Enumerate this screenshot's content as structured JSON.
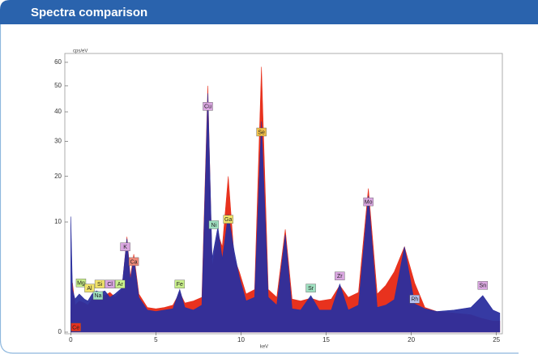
{
  "chart_data": {
    "type": "area",
    "title": "Spectra comparison",
    "xlabel": "keV",
    "ylabel": "cps/eV",
    "yscale": "sqrt",
    "xlim": [
      -0.35,
      25.35
    ],
    "ylim": [
      0,
      64
    ],
    "xticks": [
      0,
      5,
      10,
      15,
      20,
      25
    ],
    "yticks": [
      0,
      10,
      20,
      30,
      40,
      50,
      60
    ],
    "x": [
      0,
      0.1,
      0.25,
      0.5,
      0.8,
      1.0,
      1.25,
      1.5,
      1.75,
      2.0,
      2.3,
      2.6,
      3.0,
      3.3,
      3.5,
      3.7,
      4.0,
      4.5,
      5.0,
      5.5,
      6.0,
      6.4,
      6.7,
      7.2,
      7.7,
      8.05,
      8.3,
      8.64,
      8.9,
      9.25,
      9.6,
      9.9,
      10.3,
      10.8,
      11.2,
      11.6,
      12.1,
      12.6,
      13.0,
      13.5,
      14.1,
      14.6,
      15.3,
      15.8,
      16.3,
      16.9,
      17.48,
      18.0,
      18.5,
      19.0,
      19.6,
      20.2,
      20.8,
      21.5,
      22.5,
      23.5,
      24.2,
      24.8,
      25.2
    ],
    "series": [
      {
        "color": "#e8321e",
        "values": [
          0.3,
          2.0,
          0.6,
          0.8,
          0.7,
          0.6,
          0.9,
          1.0,
          1.2,
          1.1,
          1.3,
          1.0,
          1.5,
          7.5,
          2.5,
          5.0,
          1.2,
          0.5,
          0.45,
          0.5,
          0.6,
          1.3,
          0.7,
          0.8,
          1.0,
          50,
          3.5,
          8.0,
          6.0,
          20,
          4.5,
          3.0,
          1.2,
          1.5,
          58,
          1.5,
          1.0,
          8.7,
          0.9,
          0.8,
          0.95,
          0.8,
          0.9,
          1.8,
          1.0,
          1.3,
          17,
          1.2,
          1.8,
          3.0,
          6.0,
          2.0,
          0.5,
          0.35,
          0.3,
          0.25,
          0.15,
          0.1,
          0.1
        ]
      },
      {
        "color": "#2b2f9e",
        "values": [
          11,
          1.5,
          0.9,
          1.2,
          0.9,
          0.8,
          1.2,
          1.4,
          1.3,
          1.4,
          1.0,
          1.2,
          1.6,
          7.2,
          2.2,
          4.6,
          1.0,
          0.4,
          0.35,
          0.4,
          0.45,
          1.5,
          0.5,
          0.4,
          0.6,
          47,
          4.5,
          9.1,
          4.4,
          11.4,
          5.4,
          2.5,
          0.8,
          1.0,
          36.6,
          1.0,
          0.6,
          7.8,
          0.45,
          0.4,
          1.1,
          0.4,
          0.4,
          1.9,
          0.4,
          0.6,
          15.3,
          0.5,
          0.6,
          0.87,
          6.0,
          0.66,
          0.45,
          0.35,
          0.4,
          0.5,
          1.1,
          0.4,
          0.3
        ]
      }
    ],
    "annotations": [
      {
        "text": "Cu",
        "x": 8.05,
        "y": 42,
        "color": "#d9a6e0"
      },
      {
        "text": "Ni",
        "x": 8.4,
        "y": 9.5,
        "color": "#9fe0c0"
      },
      {
        "text": "Ga",
        "x": 9.25,
        "y": 10.5,
        "color": "#f1e36a"
      },
      {
        "text": "Se",
        "x": 11.2,
        "y": 33,
        "color": "#f1c14a"
      },
      {
        "text": "Sr",
        "x": 14.1,
        "y": 1.6,
        "color": "#9fe0c0"
      },
      {
        "text": "Zr",
        "x": 15.8,
        "y": 2.6,
        "color": "#d9a6e0"
      },
      {
        "text": "Mo",
        "x": 17.48,
        "y": 14,
        "color": "#d9a6e0"
      },
      {
        "text": "Rh",
        "x": 20.2,
        "y": 0.9,
        "color": "#b9c4f0"
      },
      {
        "text": "Sn",
        "x": 24.2,
        "y": 1.8,
        "color": "#d9a6e0"
      },
      {
        "text": "Fe",
        "x": 6.4,
        "y": 1.9,
        "color": "#c8ef8a"
      },
      {
        "text": "K",
        "x": 3.2,
        "y": 6.0,
        "color": "#d9a6e0"
      },
      {
        "text": "Ca",
        "x": 3.7,
        "y": 4.1,
        "color": "#f08a7a"
      },
      {
        "text": "Ar",
        "x": 2.9,
        "y": 1.9,
        "color": "#c8ef8a"
      },
      {
        "text": "Mg",
        "x": 0.6,
        "y": 2.0,
        "color": "#c8ef8a"
      },
      {
        "text": "Si",
        "x": 1.7,
        "y": 1.9,
        "color": "#f1e36a"
      },
      {
        "text": "Cl",
        "x": 2.3,
        "y": 1.9,
        "color": "#d9a6e0"
      },
      {
        "text": "Al",
        "x": 1.1,
        "y": 1.6,
        "color": "#f1e36a"
      },
      {
        "text": "Na",
        "x": 1.6,
        "y": 1.1,
        "color": "#9fe0c0"
      },
      {
        "text": "Ce",
        "x": 0.3,
        "y": 0.02,
        "color": "#e8321e"
      }
    ]
  }
}
